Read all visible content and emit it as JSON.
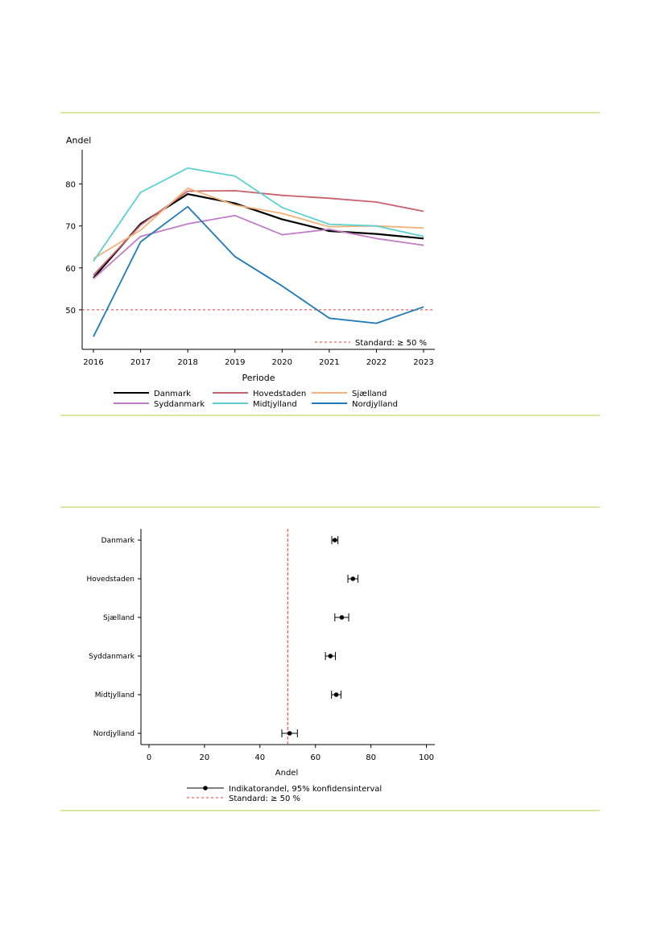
{
  "chart_data": [
    {
      "type": "line",
      "title": "",
      "xlabel": "Periode",
      "ylabel": "Andel",
      "x": [
        2016,
        2017,
        2018,
        2019,
        2020,
        2021,
        2022,
        2023
      ],
      "x_ticks": [
        "2016",
        "2017",
        "2018",
        "2019",
        "2020",
        "2021",
        "2022",
        "2023"
      ],
      "y_ticks": [
        "50",
        "60",
        "70",
        "80"
      ],
      "ylim": [
        40,
        88
      ],
      "grid": false,
      "legend_position": "bottom",
      "series": [
        {
          "name": "Danmark",
          "color": "#000000",
          "values": [
            57.6,
            70.5,
            77.6,
            75.4,
            71.6,
            68.8,
            68.1,
            67.0
          ]
        },
        {
          "name": "Hovedstaden",
          "color": "#c8626d",
          "values": [
            58.3,
            70.2,
            78.3,
            78.4,
            77.3,
            76.6,
            75.7,
            73.5
          ]
        },
        {
          "name": "Sjælland",
          "color": "#f3b27a",
          "values": [
            62.2,
            69.0,
            79.0,
            75.0,
            73.0,
            69.8,
            70.0,
            69.5
          ]
        },
        {
          "name": "Syddanmark",
          "color": "#c07cc6",
          "values": [
            57.4,
            67.5,
            70.5,
            72.5,
            67.9,
            69.2,
            67.0,
            65.4
          ]
        },
        {
          "name": "Midtjylland",
          "color": "#5dd0d2",
          "values": [
            61.6,
            78.0,
            83.8,
            81.9,
            74.4,
            70.4,
            70.0,
            67.5
          ]
        },
        {
          "name": "Nordjylland",
          "color": "#1f7ab8",
          "values": [
            43.6,
            66.2,
            74.6,
            62.7,
            55.7,
            48.0,
            46.8,
            50.7
          ]
        }
      ],
      "reference_line": {
        "value": 50,
        "label": "Standard: ≥ 50 %",
        "color": "#e8383c"
      }
    },
    {
      "type": "scatter",
      "title": "",
      "xlabel": "Andel",
      "ylabel": "",
      "categories": [
        "Danmark",
        "Hovedstaden",
        "Sjælland",
        "Syddanmark",
        "Midtjylland",
        "Nordjylland"
      ],
      "values": [
        67.0,
        73.5,
        69.5,
        65.4,
        67.5,
        50.7
      ],
      "ci_low": [
        65.9,
        71.7,
        67.0,
        63.6,
        65.8,
        47.9
      ],
      "ci_high": [
        68.1,
        75.3,
        72.0,
        67.2,
        69.2,
        53.5
      ],
      "x_ticks": [
        "0",
        "20",
        "40",
        "60",
        "80",
        "100"
      ],
      "xlim": [
        -3,
        103
      ],
      "grid": false,
      "legend_position": "bottom",
      "legend": [
        "Indikatorandel, 95% konfidensinterval",
        "Standard: ≥ 50 %"
      ],
      "reference_line": {
        "value": 50,
        "color": "#e8383c"
      }
    }
  ]
}
